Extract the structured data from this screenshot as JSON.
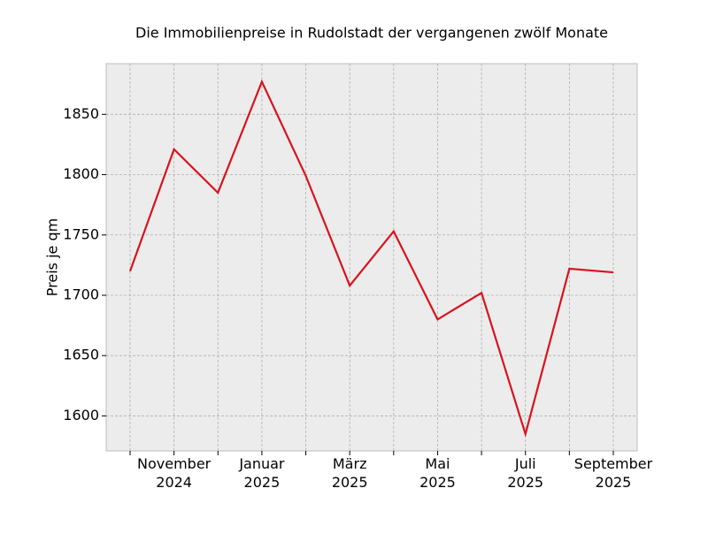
{
  "chart_data": {
    "type": "line",
    "title": "Die Immobilienpreise in Rudolstadt der vergangenen zwölf Monate",
    "ylabel": "Preis je qm",
    "categories": [
      null,
      [
        "November",
        "2024"
      ],
      null,
      [
        "Januar",
        "2025"
      ],
      null,
      [
        "März",
        "2025"
      ],
      null,
      [
        "Mai",
        "2025"
      ],
      null,
      [
        "Juli",
        "2025"
      ],
      null,
      [
        "September",
        "2025"
      ]
    ],
    "series": [
      {
        "name": "Preis je qm",
        "color": "#d7141e",
        "values": [
          1720,
          1821,
          1785,
          1877,
          1799,
          1708,
          1753,
          1680,
          1702,
          1585,
          1722,
          1719
        ]
      }
    ],
    "ylim": [
      1571,
      1892
    ],
    "yticks": [
      1600,
      1650,
      1700,
      1750,
      1800,
      1850
    ],
    "grid": true
  }
}
